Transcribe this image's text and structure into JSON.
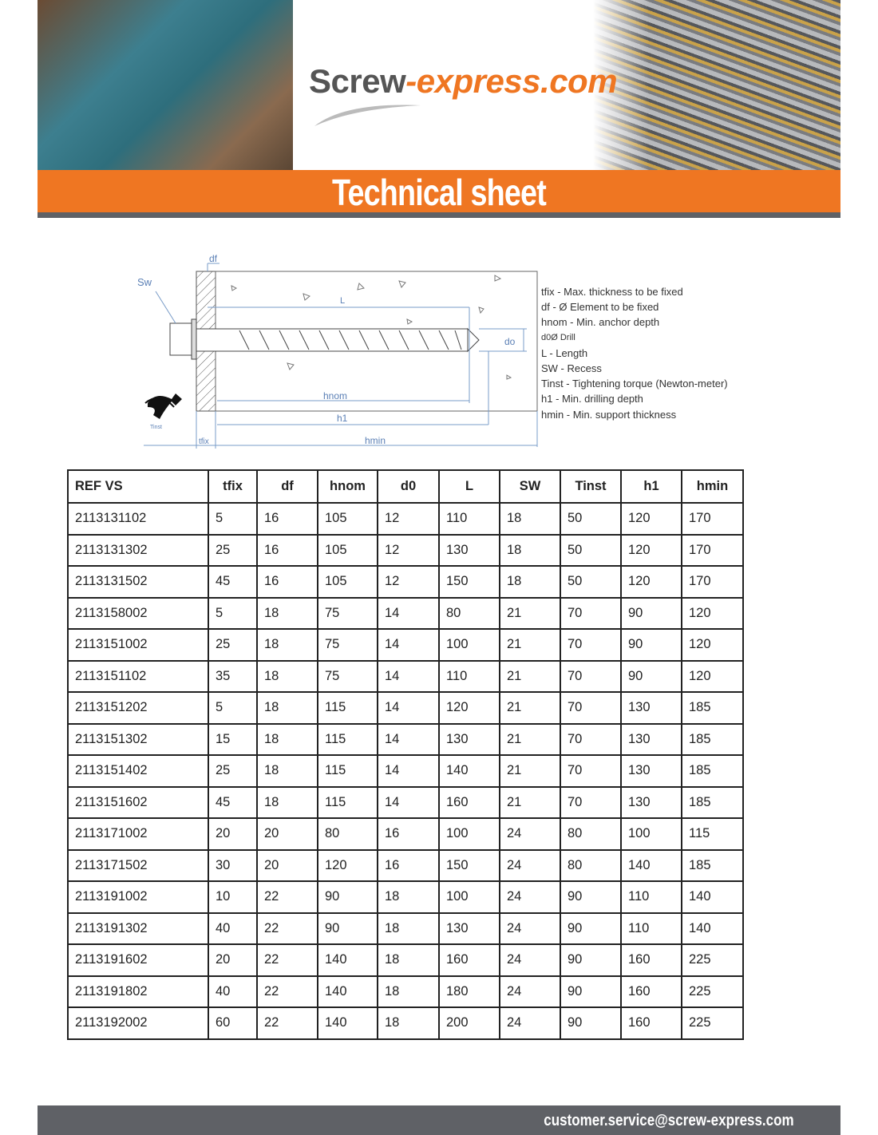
{
  "header": {
    "logo_part1": "Screw",
    "logo_part2": "-express.com",
    "banner_title": "Technical sheet",
    "accent_color": "#ef7622",
    "dark_color": "#5f6166"
  },
  "diagram": {
    "labels": {
      "sw": "Sw",
      "df": "df",
      "L": "L",
      "d0": "do",
      "hnom": "hnom",
      "h1": "h1",
      "hmin": "hmin",
      "tfix": "tfix",
      "tinst": "Tinst"
    }
  },
  "legend": [
    "tfix - Max. thickness to be fixed",
    "df - Ø Element to be fixed",
    "hnom - Min. anchor depth",
    "d0Ø Drill",
    "L - Length",
    "SW - Recess",
    "Tinst - Tightening torque (Newton-meter)",
    "h1 - Min. drilling depth",
    "hmin - Min. support thickness"
  ],
  "table": {
    "headers": [
      "REF VS",
      "tfix",
      "df",
      "hnom",
      "d0",
      "L",
      "SW",
      "Tinst",
      "h1",
      "hmin"
    ],
    "rows": [
      [
        "2113131102",
        "5",
        "16",
        "105",
        "12",
        "110",
        "18",
        "50",
        "120",
        "170"
      ],
      [
        "2113131302",
        "25",
        "16",
        "105",
        "12",
        "130",
        "18",
        "50",
        "120",
        "170"
      ],
      [
        "2113131502",
        "45",
        "16",
        "105",
        "12",
        "150",
        "18",
        "50",
        "120",
        "170"
      ],
      [
        "2113158002",
        "5",
        "18",
        "75",
        "14",
        "80",
        "21",
        "70",
        "90",
        "120"
      ],
      [
        "2113151002",
        "25",
        "18",
        "75",
        "14",
        "100",
        "21",
        "70",
        "90",
        "120"
      ],
      [
        "2113151102",
        "35",
        "18",
        "75",
        "14",
        "110",
        "21",
        "70",
        "90",
        "120"
      ],
      [
        "2113151202",
        "5",
        "18",
        "115",
        "14",
        "120",
        "21",
        "70",
        "130",
        "185"
      ],
      [
        "2113151302",
        "15",
        "18",
        "115",
        "14",
        "130",
        "21",
        "70",
        "130",
        "185"
      ],
      [
        "2113151402",
        "25",
        "18",
        "115",
        "14",
        "140",
        "21",
        "70",
        "130",
        "185"
      ],
      [
        "2113151602",
        "45",
        "18",
        "115",
        "14",
        "160",
        "21",
        "70",
        "130",
        "185"
      ],
      [
        "2113171002",
        "20",
        "20",
        "80",
        "16",
        "100",
        "24",
        "80",
        "100",
        "115"
      ],
      [
        "2113171502",
        "30",
        "20",
        "120",
        "16",
        "150",
        "24",
        "80",
        "140",
        "185"
      ],
      [
        "2113191002",
        "10",
        "22",
        "90",
        "18",
        "100",
        "24",
        "90",
        "110",
        "140"
      ],
      [
        "2113191302",
        "40",
        "22",
        "90",
        "18",
        "130",
        "24",
        "90",
        "110",
        "140"
      ],
      [
        "2113191602",
        "20",
        "22",
        "140",
        "18",
        "160",
        "24",
        "90",
        "160",
        "225"
      ],
      [
        "2113191802",
        "40",
        "22",
        "140",
        "18",
        "180",
        "24",
        "90",
        "160",
        "225"
      ],
      [
        "2113192002",
        "60",
        "22",
        "140",
        "18",
        "200",
        "24",
        "90",
        "160",
        "225"
      ]
    ]
  },
  "footer": {
    "email": "customer.service@screw-express.com"
  }
}
